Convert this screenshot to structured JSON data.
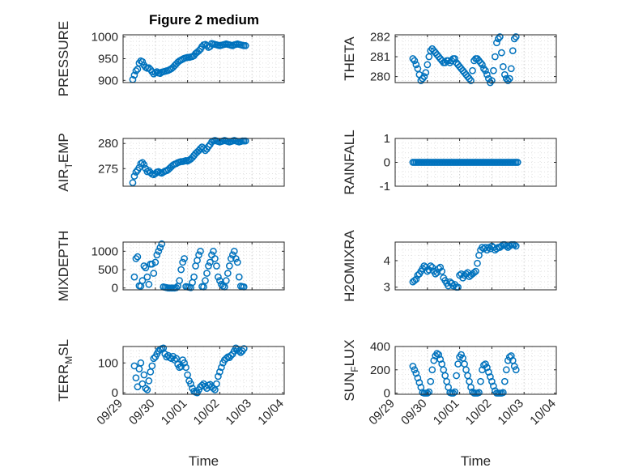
{
  "figure": {
    "title": "Figure 2 medium",
    "marker_color": "#0072bd"
  },
  "chart_data": [
    {
      "type": "scatter",
      "ylabel": "PRESSURE",
      "sub": "",
      "ylabel_tail": "",
      "ylim": [
        895,
        1005
      ],
      "yticks": [
        900,
        950,
        1000
      ],
      "ytick_labels": [
        "900",
        "950",
        "1000"
      ],
      "xlim": [
        0,
        5
      ],
      "xticks": [],
      "xtick_labels": [],
      "xlabel": "",
      "x": [
        0.3,
        0.35,
        0.4,
        0.45,
        0.5,
        0.55,
        0.6,
        0.65,
        0.7,
        0.75,
        0.8,
        0.85,
        0.9,
        0.95,
        1.0,
        1.05,
        1.1,
        1.15,
        1.2,
        1.25,
        1.3,
        1.35,
        1.4,
        1.45,
        1.5,
        1.55,
        1.6,
        1.65,
        1.7,
        1.75,
        1.8,
        1.85,
        1.9,
        1.95,
        2.0,
        2.05,
        2.1,
        2.15,
        2.2,
        2.25,
        2.3,
        2.35,
        2.4,
        2.45,
        2.5,
        2.55,
        2.6,
        2.65,
        2.7,
        2.75,
        2.8,
        2.85,
        2.9,
        2.95,
        3.0,
        3.05,
        3.1,
        3.15,
        3.2,
        3.25,
        3.3,
        3.35,
        3.4,
        3.45,
        3.5,
        3.55,
        3.6,
        3.65,
        3.7,
        3.75,
        3.8
      ],
      "values": [
        902,
        912,
        922,
        926,
        940,
        945,
        943,
        935,
        930,
        928,
        929,
        925,
        920,
        915,
        918,
        920,
        917,
        916,
        919,
        920,
        921,
        922,
        923,
        925,
        927,
        930,
        934,
        938,
        942,
        945,
        947,
        949,
        951,
        952,
        953,
        953,
        954,
        955,
        957,
        962,
        965,
        968,
        972,
        978,
        982,
        983,
        980,
        976,
        978,
        985,
        984,
        983,
        982,
        981,
        980,
        981,
        982,
        983,
        984,
        983,
        982,
        981,
        980,
        982,
        983,
        984,
        983,
        982,
        981,
        980,
        980
      ]
    },
    {
      "type": "scatter",
      "ylabel": "THETA",
      "sub": "",
      "ylabel_tail": "",
      "ylim": [
        279.7,
        282.1
      ],
      "yticks": [
        280,
        281,
        282
      ],
      "ytick_labels": [
        "280",
        "281",
        "282"
      ],
      "xlim": [
        0,
        5
      ],
      "xticks": [],
      "xtick_labels": [],
      "xlabel": "",
      "x": [
        0.55,
        0.6,
        0.65,
        0.7,
        0.75,
        0.8,
        0.85,
        0.9,
        0.95,
        1.0,
        1.05,
        1.1,
        1.15,
        1.2,
        1.25,
        1.3,
        1.35,
        1.4,
        1.45,
        1.5,
        1.55,
        1.6,
        1.65,
        1.7,
        1.75,
        1.8,
        1.85,
        1.9,
        1.95,
        2.0,
        2.05,
        2.1,
        2.15,
        2.2,
        2.25,
        2.3,
        2.35,
        2.4,
        2.45,
        2.5,
        2.55,
        2.6,
        2.65,
        2.7,
        2.75,
        2.8,
        2.85,
        2.9,
        2.95,
        3.0,
        3.05,
        3.1,
        3.15,
        3.2,
        3.25,
        3.3,
        3.35,
        3.4,
        3.45,
        3.5,
        3.55,
        3.6,
        3.65,
        3.7,
        3.75
      ],
      "values": [
        280.9,
        280.8,
        280.6,
        280.4,
        280.1,
        279.8,
        279.9,
        280.0,
        280.2,
        280.6,
        281.0,
        281.3,
        281.4,
        281.3,
        281.2,
        281.1,
        281.0,
        280.9,
        280.8,
        280.7,
        280.7,
        280.8,
        280.8,
        280.7,
        280.8,
        280.9,
        280.9,
        280.7,
        280.6,
        280.5,
        280.4,
        280.3,
        280.2,
        280.1,
        280.0,
        279.9,
        279.8,
        280.3,
        280.8,
        280.9,
        280.9,
        280.8,
        280.7,
        280.6,
        280.4,
        280.3,
        280.1,
        279.9,
        279.7,
        279.8,
        280.3,
        281.0,
        281.7,
        281.9,
        282.0,
        281.2,
        280.5,
        280.1,
        279.9,
        279.8,
        279.9,
        280.4,
        281.3,
        281.9,
        282.0
      ]
    },
    {
      "type": "scatter",
      "ylabel": "AIR",
      "sub": "T",
      "ylabel_tail": "EMP",
      "ylim": [
        271.5,
        281
      ],
      "yticks": [
        275,
        280
      ],
      "ytick_labels": [
        "275",
        "280"
      ],
      "xlim": [
        0,
        5
      ],
      "xticks": [],
      "xtick_labels": [],
      "xlabel": "",
      "x": [
        0.3,
        0.35,
        0.4,
        0.45,
        0.5,
        0.55,
        0.6,
        0.65,
        0.7,
        0.75,
        0.8,
        0.85,
        0.9,
        0.95,
        1.0,
        1.05,
        1.1,
        1.15,
        1.2,
        1.25,
        1.3,
        1.35,
        1.4,
        1.45,
        1.5,
        1.55,
        1.6,
        1.65,
        1.7,
        1.75,
        1.8,
        1.85,
        1.9,
        1.95,
        2.0,
        2.05,
        2.1,
        2.15,
        2.2,
        2.25,
        2.3,
        2.35,
        2.4,
        2.45,
        2.5,
        2.55,
        2.6,
        2.65,
        2.7,
        2.75,
        2.8,
        2.85,
        2.9,
        2.95,
        3.0,
        3.05,
        3.1,
        3.15,
        3.2,
        3.25,
        3.3,
        3.35,
        3.4,
        3.45,
        3.5,
        3.55,
        3.6,
        3.65,
        3.7,
        3.75,
        3.8
      ],
      "values": [
        272.2,
        273.5,
        274.3,
        274.7,
        275.2,
        276.0,
        276.2,
        275.8,
        275.0,
        274.4,
        274.6,
        274.2,
        273.9,
        273.8,
        274.0,
        274.3,
        274.4,
        274.2,
        274.1,
        274.3,
        274.5,
        274.6,
        274.8,
        275.1,
        275.4,
        275.7,
        275.9,
        276.0,
        276.2,
        276.3,
        276.4,
        276.4,
        276.5,
        276.6,
        276.5,
        276.7,
        276.9,
        277.2,
        277.6,
        278.0,
        278.3,
        278.6,
        279.0,
        279.3,
        279.0,
        278.6,
        278.9,
        279.4,
        279.8,
        280.3,
        280.5,
        280.6,
        280.5,
        280.4,
        280.3,
        280.4,
        280.5,
        280.6,
        280.5,
        280.4,
        280.3,
        280.4,
        280.5,
        280.6,
        280.5,
        280.4,
        280.3,
        280.4,
        280.5,
        280.5,
        280.5
      ]
    },
    {
      "type": "scatter",
      "ylabel": "RAINFALL",
      "sub": "",
      "ylabel_tail": "",
      "ylim": [
        -1,
        1
      ],
      "yticks": [
        -1,
        0,
        1
      ],
      "ytick_labels": [
        "-1",
        "0",
        "1"
      ],
      "xlim": [
        0,
        5
      ],
      "xticks": [],
      "xtick_labels": [],
      "xlabel": "",
      "x": [
        0.55,
        0.6,
        0.65,
        0.7,
        0.75,
        0.8,
        0.85,
        0.9,
        0.95,
        1.0,
        1.05,
        1.1,
        1.15,
        1.2,
        1.25,
        1.3,
        1.35,
        1.4,
        1.45,
        1.5,
        1.55,
        1.6,
        1.65,
        1.7,
        1.75,
        1.8,
        1.85,
        1.9,
        1.95,
        2.0,
        2.05,
        2.1,
        2.15,
        2.2,
        2.25,
        2.3,
        2.35,
        2.4,
        2.45,
        2.5,
        2.55,
        2.6,
        2.65,
        2.7,
        2.75,
        2.8,
        2.85,
        2.9,
        2.95,
        3.0,
        3.05,
        3.1,
        3.15,
        3.2,
        3.25,
        3.3,
        3.35,
        3.4,
        3.45,
        3.5,
        3.55,
        3.6,
        3.65,
        3.7,
        3.75,
        3.8
      ],
      "values": [
        0,
        0,
        0,
        0,
        0,
        0,
        0,
        0,
        0,
        0,
        0,
        0,
        0,
        0,
        0,
        0,
        0,
        0,
        0,
        0,
        0,
        0,
        0,
        0,
        0,
        0,
        0,
        0,
        0,
        0,
        0,
        0,
        0,
        0,
        0,
        0,
        0,
        0,
        0,
        0,
        0,
        0,
        0,
        0,
        0,
        0,
        0,
        0,
        0,
        0,
        0,
        0,
        0,
        0,
        0,
        0,
        0,
        0,
        0,
        0,
        0,
        0,
        0,
        0,
        0,
        0
      ]
    },
    {
      "type": "scatter",
      "ylabel": "MIXDEPTH",
      "sub": "",
      "ylabel_tail": "",
      "ylim": [
        -50,
        1250
      ],
      "yticks": [
        0,
        500,
        1000
      ],
      "ytick_labels": [
        "0",
        "500",
        "1000"
      ],
      "xlim": [
        0,
        5
      ],
      "xticks": [],
      "xtick_labels": [],
      "xlabel": "",
      "x": [
        0.35,
        0.4,
        0.45,
        0.5,
        0.55,
        0.6,
        0.65,
        0.7,
        0.75,
        0.8,
        0.85,
        0.9,
        0.95,
        1.0,
        1.05,
        1.1,
        1.15,
        1.2,
        1.25,
        1.3,
        1.35,
        1.4,
        1.45,
        1.5,
        1.55,
        1.6,
        1.65,
        1.7,
        1.75,
        1.8,
        1.85,
        1.9,
        1.95,
        2.0,
        2.05,
        2.1,
        2.15,
        2.2,
        2.25,
        2.3,
        2.35,
        2.4,
        2.45,
        2.5,
        2.55,
        2.6,
        2.65,
        2.7,
        2.75,
        2.8,
        2.85,
        2.9,
        2.95,
        3.0,
        3.05,
        3.1,
        3.15,
        3.2,
        3.25,
        3.3,
        3.35,
        3.4,
        3.45,
        3.5,
        3.55,
        3.6,
        3.65,
        3.7,
        3.75
      ],
      "values": [
        300,
        800,
        850,
        60,
        50,
        200,
        600,
        550,
        300,
        100,
        650,
        650,
        400,
        700,
        900,
        1000,
        1100,
        1200,
        30,
        20,
        10,
        0,
        0,
        0,
        0,
        0,
        10,
        50,
        200,
        500,
        700,
        800,
        40,
        30,
        20,
        10,
        150,
        300,
        600,
        750,
        900,
        1000,
        40,
        30,
        200,
        400,
        600,
        700,
        900,
        1000,
        800,
        600,
        300,
        200,
        100,
        50,
        30,
        200,
        400,
        600,
        800,
        900,
        1000,
        800,
        700,
        300,
        50,
        40,
        30
      ]
    },
    {
      "type": "scatter",
      "ylabel": "H2OMIXRA",
      "sub": "",
      "ylabel_tail": "",
      "ylim": [
        2.9,
        4.7
      ],
      "yticks": [
        3,
        4
      ],
      "ytick_labels": [
        "3",
        "4"
      ],
      "xlim": [
        0,
        5
      ],
      "xticks": [],
      "xtick_labels": [],
      "xlabel": "",
      "x": [
        0.55,
        0.6,
        0.65,
        0.7,
        0.75,
        0.8,
        0.85,
        0.9,
        0.95,
        1.0,
        1.05,
        1.1,
        1.15,
        1.2,
        1.25,
        1.3,
        1.35,
        1.4,
        1.45,
        1.5,
        1.55,
        1.6,
        1.65,
        1.7,
        1.75,
        1.8,
        1.85,
        1.9,
        1.95,
        2.0,
        2.05,
        2.1,
        2.15,
        2.2,
        2.25,
        2.3,
        2.35,
        2.4,
        2.45,
        2.5,
        2.55,
        2.6,
        2.65,
        2.7,
        2.75,
        2.8,
        2.85,
        2.9,
        2.95,
        3.0,
        3.05,
        3.1,
        3.15,
        3.2,
        3.25,
        3.3,
        3.35,
        3.4,
        3.45,
        3.5,
        3.55,
        3.6,
        3.65,
        3.7,
        3.75
      ],
      "values": [
        3.2,
        3.25,
        3.3,
        3.45,
        3.5,
        3.6,
        3.7,
        3.8,
        3.75,
        3.6,
        3.65,
        3.8,
        3.75,
        3.6,
        3.5,
        3.55,
        3.7,
        3.75,
        3.6,
        3.35,
        3.25,
        3.15,
        3.05,
        3.2,
        3.15,
        3.05,
        3.1,
        3.0,
        3.0,
        3.45,
        3.5,
        3.35,
        3.45,
        3.5,
        3.55,
        3.4,
        3.45,
        3.5,
        3.55,
        3.6,
        3.9,
        4.2,
        4.4,
        4.5,
        4.45,
        4.5,
        4.4,
        4.5,
        4.45,
        4.55,
        4.5,
        4.4,
        4.45,
        4.5,
        4.5,
        4.55,
        4.6,
        4.6,
        4.55,
        4.5,
        4.55,
        4.6,
        4.6,
        4.6,
        4.55
      ]
    },
    {
      "type": "scatter",
      "ylabel": "TERR",
      "sub": "M",
      "ylabel_tail": "SL",
      "ylim": [
        -5,
        155
      ],
      "yticks": [
        0,
        100
      ],
      "ytick_labels": [
        "0",
        "100"
      ],
      "xlim": [
        0,
        5
      ],
      "xticks": [
        0,
        1,
        2,
        3,
        4,
        5
      ],
      "xtick_labels": [
        "09/29",
        "09/30",
        "10/01",
        "10/02",
        "10/03",
        "10/04"
      ],
      "xlabel": "Time",
      "x": [
        0.35,
        0.4,
        0.45,
        0.5,
        0.55,
        0.6,
        0.65,
        0.7,
        0.75,
        0.8,
        0.85,
        0.9,
        0.95,
        1.0,
        1.05,
        1.1,
        1.15,
        1.2,
        1.25,
        1.3,
        1.35,
        1.4,
        1.45,
        1.5,
        1.55,
        1.6,
        1.65,
        1.7,
        1.75,
        1.8,
        1.85,
        1.9,
        1.95,
        2.0,
        2.05,
        2.1,
        2.15,
        2.2,
        2.25,
        2.3,
        2.35,
        2.4,
        2.45,
        2.5,
        2.55,
        2.6,
        2.65,
        2.7,
        2.75,
        2.8,
        2.85,
        2.9,
        2.95,
        3.0,
        3.05,
        3.1,
        3.15,
        3.2,
        3.25,
        3.3,
        3.35,
        3.4,
        3.45,
        3.5,
        3.55,
        3.6,
        3.65,
        3.7,
        3.75
      ],
      "values": [
        90,
        50,
        20,
        80,
        100,
        30,
        60,
        15,
        10,
        40,
        70,
        90,
        115,
        120,
        130,
        140,
        145,
        148,
        150,
        130,
        120,
        125,
        118,
        115,
        122,
        110,
        115,
        95,
        85,
        88,
        110,
        100,
        85,
        60,
        40,
        30,
        15,
        5,
        2,
        0,
        10,
        20,
        25,
        30,
        22,
        15,
        25,
        28,
        20,
        15,
        10,
        30,
        55,
        70,
        85,
        100,
        110,
        115,
        120,
        118,
        125,
        130,
        140,
        150,
        145,
        140,
        135,
        140,
        148
      ]
    },
    {
      "type": "scatter",
      "ylabel": "SUN",
      "sub": "F",
      "ylabel_tail": "LUX",
      "ylim": [
        -10,
        400
      ],
      "yticks": [
        0,
        200,
        400
      ],
      "ytick_labels": [
        "0",
        "200",
        "400"
      ],
      "xlim": [
        0,
        5
      ],
      "xticks": [
        0,
        1,
        2,
        3,
        4,
        5
      ],
      "xtick_labels": [
        "09/29",
        "09/30",
        "10/01",
        "10/02",
        "10/03",
        "10/04"
      ],
      "xlabel": "Time",
      "x": [
        0.55,
        0.6,
        0.65,
        0.7,
        0.75,
        0.8,
        0.85,
        0.9,
        0.95,
        1.0,
        1.05,
        1.1,
        1.15,
        1.2,
        1.25,
        1.3,
        1.35,
        1.4,
        1.45,
        1.5,
        1.55,
        1.6,
        1.65,
        1.7,
        1.75,
        1.8,
        1.85,
        1.9,
        1.95,
        2.0,
        2.05,
        2.1,
        2.15,
        2.2,
        2.25,
        2.3,
        2.35,
        2.4,
        2.45,
        2.5,
        2.55,
        2.6,
        2.65,
        2.7,
        2.75,
        2.8,
        2.85,
        2.9,
        2.95,
        3.0,
        3.05,
        3.1,
        3.15,
        3.2,
        3.25,
        3.3,
        3.35,
        3.4,
        3.45,
        3.5,
        3.55,
        3.6,
        3.65,
        3.7,
        3.75
      ],
      "values": [
        230,
        200,
        170,
        130,
        90,
        50,
        5,
        0,
        0,
        0,
        10,
        100,
        200,
        280,
        320,
        340,
        330,
        290,
        250,
        200,
        150,
        100,
        50,
        5,
        0,
        0,
        10,
        150,
        250,
        310,
        330,
        300,
        250,
        200,
        150,
        100,
        50,
        10,
        0,
        0,
        0,
        5,
        100,
        200,
        240,
        250,
        220,
        180,
        140,
        100,
        60,
        20,
        0,
        0,
        0,
        0,
        5,
        100,
        200,
        280,
        310,
        320,
        280,
        230,
        200
      ]
    }
  ]
}
